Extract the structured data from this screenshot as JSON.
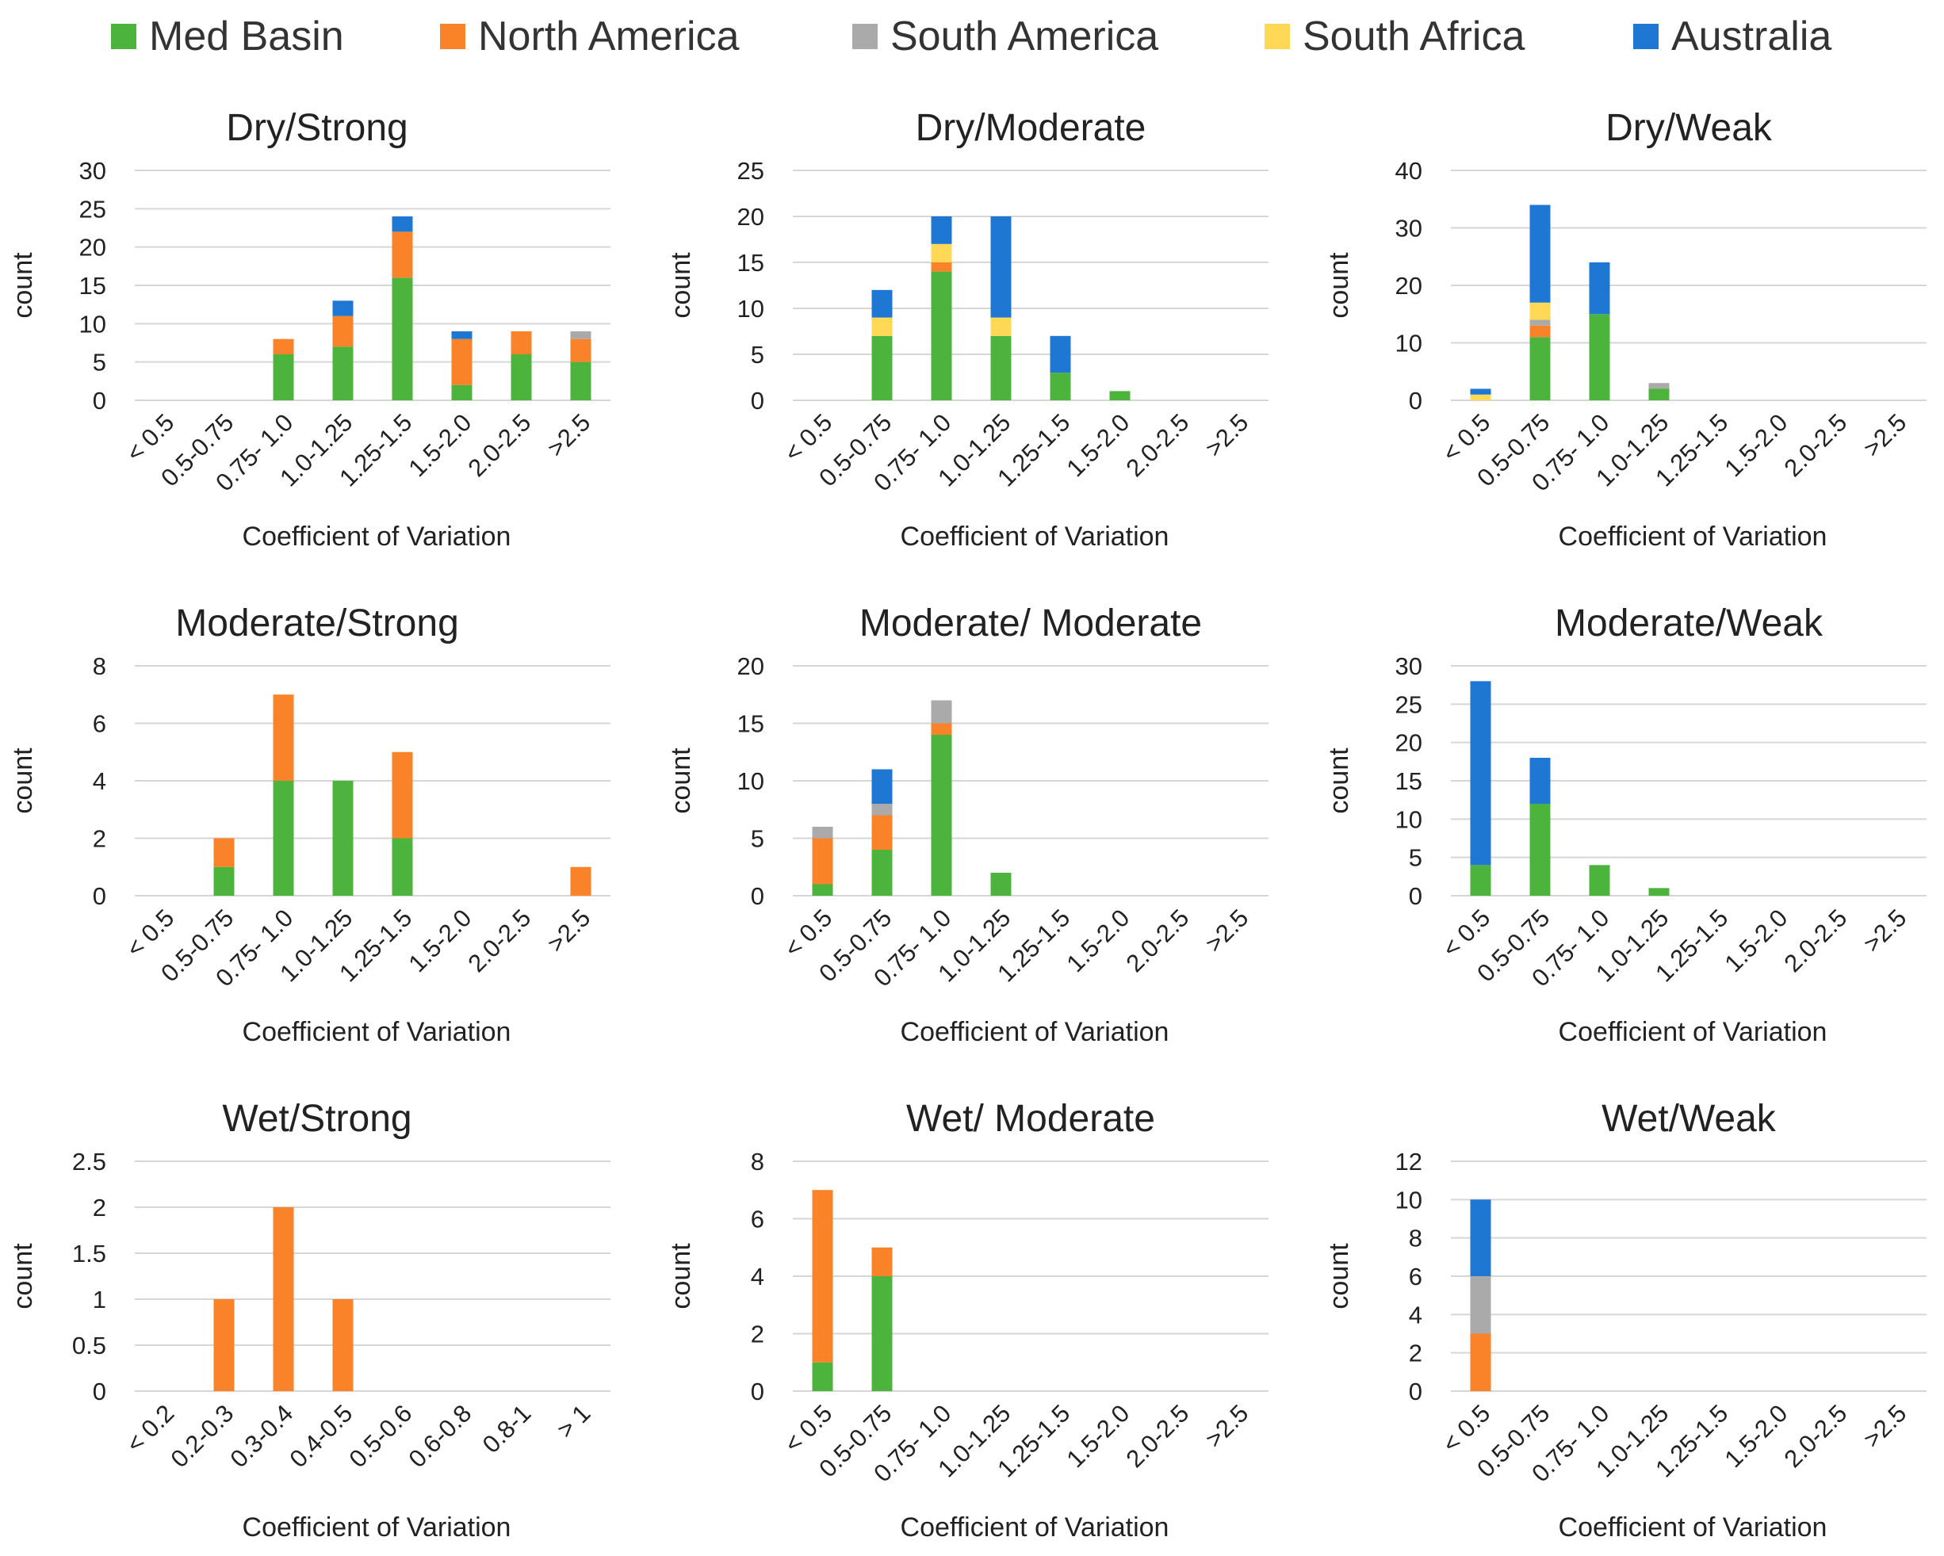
{
  "legend": [
    {
      "name": "Med Basin",
      "color": "#4CB43C"
    },
    {
      "name": "North America",
      "color": "#FA8228"
    },
    {
      "name": "South America",
      "color": "#AAAAAA"
    },
    {
      "name": "South Africa",
      "color": "#FFD955"
    },
    {
      "name": "Australia",
      "color": "#1F77D4"
    }
  ],
  "chart_data": [
    {
      "type": "bar",
      "stacked": true,
      "title": "Dry/Strong",
      "xlabel": "Coefficient of Variation",
      "ylabel": "count",
      "ylim": [
        0,
        30
      ],
      "yticks": [
        0,
        5,
        10,
        15,
        20,
        25,
        30
      ],
      "categories": [
        "< 0.5",
        "0.5-0.75",
        "0.75- 1.0",
        "1.0-1.25",
        "1.25-1.5",
        "1.5-2.0",
        "2.0-2.5",
        ">2.5"
      ],
      "series": [
        {
          "name": "Med Basin",
          "values": [
            0,
            0,
            6,
            7,
            16,
            2,
            6,
            5
          ]
        },
        {
          "name": "North America",
          "values": [
            0,
            0,
            2,
            4,
            6,
            6,
            3,
            3
          ]
        },
        {
          "name": "South America",
          "values": [
            0,
            0,
            0,
            0,
            0,
            0,
            0,
            1
          ]
        },
        {
          "name": "South Africa",
          "values": [
            0,
            0,
            0,
            0,
            0,
            0,
            0,
            0
          ]
        },
        {
          "name": "Australia",
          "values": [
            0,
            0,
            0,
            2,
            2,
            1,
            0,
            0
          ]
        }
      ]
    },
    {
      "type": "bar",
      "stacked": true,
      "title": "Dry/Moderate",
      "xlabel": "Coefficient of Variation",
      "ylabel": "count",
      "ylim": [
        0,
        25
      ],
      "yticks": [
        0,
        5,
        10,
        15,
        20,
        25
      ],
      "categories": [
        "< 0.5",
        "0.5-0.75",
        "0.75- 1.0",
        "1.0-1.25",
        "1.25-1.5",
        "1.5-2.0",
        "2.0-2.5",
        ">2.5"
      ],
      "series": [
        {
          "name": "Med Basin",
          "values": [
            0,
            7,
            14,
            7,
            3,
            1,
            0,
            0
          ]
        },
        {
          "name": "North America",
          "values": [
            0,
            0,
            1,
            0,
            0,
            0,
            0,
            0
          ]
        },
        {
          "name": "South America",
          "values": [
            0,
            0,
            0,
            0,
            0,
            0,
            0,
            0
          ]
        },
        {
          "name": "South Africa",
          "values": [
            0,
            2,
            2,
            2,
            0,
            0,
            0,
            0
          ]
        },
        {
          "name": "Australia",
          "values": [
            0,
            3,
            3,
            11,
            4,
            0,
            0,
            0
          ]
        }
      ]
    },
    {
      "type": "bar",
      "stacked": true,
      "title": "Dry/Weak",
      "xlabel": "Coefficient of Variation",
      "ylabel": "count",
      "ylim": [
        0,
        40
      ],
      "yticks": [
        0,
        10,
        20,
        30,
        40
      ],
      "categories": [
        "< 0.5",
        "0.5-0.75",
        "0.75- 1.0",
        "1.0-1.25",
        "1.25-1.5",
        "1.5-2.0",
        "2.0-2.5",
        ">2.5"
      ],
      "series": [
        {
          "name": "Med Basin",
          "values": [
            0,
            11,
            15,
            2,
            0,
            0,
            0,
            0
          ]
        },
        {
          "name": "North America",
          "values": [
            0,
            2,
            0,
            0,
            0,
            0,
            0,
            0
          ]
        },
        {
          "name": "South America",
          "values": [
            0,
            1,
            0,
            1,
            0,
            0,
            0,
            0
          ]
        },
        {
          "name": "South Africa",
          "values": [
            1,
            3,
            0,
            0,
            0,
            0,
            0,
            0
          ]
        },
        {
          "name": "Australia",
          "values": [
            1,
            17,
            9,
            0,
            0,
            0,
            0,
            0
          ]
        }
      ]
    },
    {
      "type": "bar",
      "stacked": true,
      "title": "Moderate/Strong",
      "xlabel": "Coefficient of Variation",
      "ylabel": "count",
      "ylim": [
        0,
        8
      ],
      "yticks": [
        0,
        2,
        4,
        6,
        8
      ],
      "categories": [
        "< 0.5",
        "0.5-0.75",
        "0.75- 1.0",
        "1.0-1.25",
        "1.25-1.5",
        "1.5-2.0",
        "2.0-2.5",
        ">2.5"
      ],
      "series": [
        {
          "name": "Med Basin",
          "values": [
            0,
            1,
            4,
            4,
            2,
            0,
            0,
            0
          ]
        },
        {
          "name": "North America",
          "values": [
            0,
            1,
            3,
            0,
            3,
            0,
            0,
            1
          ]
        },
        {
          "name": "South America",
          "values": [
            0,
            0,
            0,
            0,
            0,
            0,
            0,
            0
          ]
        },
        {
          "name": "South Africa",
          "values": [
            0,
            0,
            0,
            0,
            0,
            0,
            0,
            0
          ]
        },
        {
          "name": "Australia",
          "values": [
            0,
            0,
            0,
            0,
            0,
            0,
            0,
            0
          ]
        }
      ]
    },
    {
      "type": "bar",
      "stacked": true,
      "title": "Moderate/ Moderate",
      "xlabel": "Coefficient of Variation",
      "ylabel": "count",
      "ylim": [
        0,
        20
      ],
      "yticks": [
        0,
        5,
        10,
        15,
        20
      ],
      "categories": [
        "< 0.5",
        "0.5-0.75",
        "0.75- 1.0",
        "1.0-1.25",
        "1.25-1.5",
        "1.5-2.0",
        "2.0-2.5",
        ">2.5"
      ],
      "series": [
        {
          "name": "Med Basin",
          "values": [
            1,
            4,
            14,
            2,
            0,
            0,
            0,
            0
          ]
        },
        {
          "name": "North America",
          "values": [
            4,
            3,
            1,
            0,
            0,
            0,
            0,
            0
          ]
        },
        {
          "name": "South America",
          "values": [
            1,
            1,
            2,
            0,
            0,
            0,
            0,
            0
          ]
        },
        {
          "name": "South Africa",
          "values": [
            0,
            0,
            0,
            0,
            0,
            0,
            0,
            0
          ]
        },
        {
          "name": "Australia",
          "values": [
            0,
            3,
            0,
            0,
            0,
            0,
            0,
            0
          ]
        }
      ]
    },
    {
      "type": "bar",
      "stacked": true,
      "title": "Moderate/Weak",
      "xlabel": "Coefficient of Variation",
      "ylabel": "count",
      "ylim": [
        0,
        30
      ],
      "yticks": [
        0,
        5,
        10,
        15,
        20,
        25,
        30
      ],
      "categories": [
        "< 0.5",
        "0.5-0.75",
        "0.75- 1.0",
        "1.0-1.25",
        "1.25-1.5",
        "1.5-2.0",
        "2.0-2.5",
        ">2.5"
      ],
      "series": [
        {
          "name": "Med Basin",
          "values": [
            4,
            12,
            4,
            1,
            0,
            0,
            0,
            0
          ]
        },
        {
          "name": "North America",
          "values": [
            0,
            0,
            0,
            0,
            0,
            0,
            0,
            0
          ]
        },
        {
          "name": "South America",
          "values": [
            0,
            0,
            0,
            0,
            0,
            0,
            0,
            0
          ]
        },
        {
          "name": "South Africa",
          "values": [
            0,
            0,
            0,
            0,
            0,
            0,
            0,
            0
          ]
        },
        {
          "name": "Australia",
          "values": [
            24,
            6,
            0,
            0,
            0,
            0,
            0,
            0
          ]
        }
      ]
    },
    {
      "type": "bar",
      "stacked": true,
      "title": "Wet/Strong",
      "xlabel": "Coefficient of Variation",
      "ylabel": "count",
      "ylim": [
        0,
        2.5
      ],
      "yticks": [
        0,
        0.5,
        1,
        1.5,
        2,
        2.5
      ],
      "categories": [
        "< 0.2",
        "0.2-0.3",
        "0.3-0.4",
        "0.4-0.5",
        "0.5-0.6",
        "0.6-0.8",
        "0.8-1",
        "> 1"
      ],
      "series": [
        {
          "name": "Med Basin",
          "values": [
            0,
            0,
            0,
            0,
            0,
            0,
            0,
            0
          ]
        },
        {
          "name": "North America",
          "values": [
            0,
            1,
            2,
            1,
            0,
            0,
            0,
            0
          ]
        },
        {
          "name": "South America",
          "values": [
            0,
            0,
            0,
            0,
            0,
            0,
            0,
            0
          ]
        },
        {
          "name": "South Africa",
          "values": [
            0,
            0,
            0,
            0,
            0,
            0,
            0,
            0
          ]
        },
        {
          "name": "Australia",
          "values": [
            0,
            0,
            0,
            0,
            0,
            0,
            0,
            0
          ]
        }
      ]
    },
    {
      "type": "bar",
      "stacked": true,
      "title": "Wet/ Moderate",
      "xlabel": "Coefficient of Variation",
      "ylabel": "count",
      "ylim": [
        0,
        8
      ],
      "yticks": [
        0,
        2,
        4,
        6,
        8
      ],
      "categories": [
        "< 0.5",
        "0.5-0.75",
        "0.75- 1.0",
        "1.0-1.25",
        "1.25-1.5",
        "1.5-2.0",
        "2.0-2.5",
        ">2.5"
      ],
      "series": [
        {
          "name": "Med Basin",
          "values": [
            1,
            4,
            0,
            0,
            0,
            0,
            0,
            0
          ]
        },
        {
          "name": "North America",
          "values": [
            6,
            1,
            0,
            0,
            0,
            0,
            0,
            0
          ]
        },
        {
          "name": "South America",
          "values": [
            0,
            0,
            0,
            0,
            0,
            0,
            0,
            0
          ]
        },
        {
          "name": "South Africa",
          "values": [
            0,
            0,
            0,
            0,
            0,
            0,
            0,
            0
          ]
        },
        {
          "name": "Australia",
          "values": [
            0,
            0,
            0,
            0,
            0,
            0,
            0,
            0
          ]
        }
      ]
    },
    {
      "type": "bar",
      "stacked": true,
      "title": "Wet/Weak",
      "xlabel": "Coefficient of Variation",
      "ylabel": "count",
      "ylim": [
        0,
        12
      ],
      "yticks": [
        0,
        2,
        4,
        6,
        8,
        10,
        12
      ],
      "categories": [
        "< 0.5",
        "0.5-0.75",
        "0.75- 1.0",
        "1.0-1.25",
        "1.25-1.5",
        "1.5-2.0",
        "2.0-2.5",
        ">2.5"
      ],
      "series": [
        {
          "name": "Med Basin",
          "values": [
            0,
            0,
            0,
            0,
            0,
            0,
            0,
            0
          ]
        },
        {
          "name": "North America",
          "values": [
            3,
            0,
            0,
            0,
            0,
            0,
            0,
            0
          ]
        },
        {
          "name": "South America",
          "values": [
            3,
            0,
            0,
            0,
            0,
            0,
            0,
            0
          ]
        },
        {
          "name": "South Africa",
          "values": [
            0,
            0,
            0,
            0,
            0,
            0,
            0,
            0
          ]
        },
        {
          "name": "Australia",
          "values": [
            4,
            0,
            0,
            0,
            0,
            0,
            0,
            0
          ]
        }
      ]
    }
  ]
}
